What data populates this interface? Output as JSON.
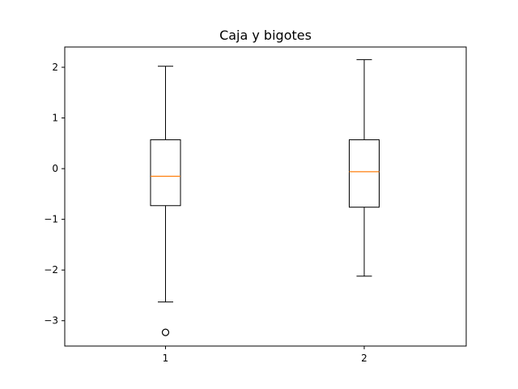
{
  "chart_data": {
    "type": "box",
    "title": "Caja y bigotes",
    "xlabel": "",
    "ylabel": "",
    "categories": [
      "1",
      "2"
    ],
    "ylim": [
      -3.5,
      2.4
    ],
    "yticks": [
      2,
      1,
      0,
      -1,
      -2,
      -3
    ],
    "ytick_labels": [
      "2",
      "1",
      "0",
      "−1",
      "−2",
      "−3"
    ],
    "boxes": [
      {
        "label": "1",
        "whisker_low": -2.63,
        "q1": -0.73,
        "median": -0.15,
        "q3": 0.57,
        "whisker_high": 2.02,
        "outliers": [
          -3.23
        ]
      },
      {
        "label": "2",
        "whisker_low": -2.12,
        "q1": -0.76,
        "median": -0.06,
        "q3": 0.57,
        "whisker_high": 2.15,
        "outliers": []
      }
    ],
    "colors": {
      "box": "#000000",
      "median": "#ff7f0e",
      "axes": "#000000",
      "background": "#ffffff"
    },
    "grid": false
  }
}
